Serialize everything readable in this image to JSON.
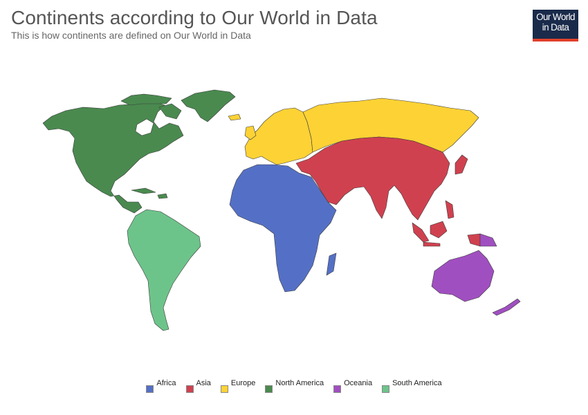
{
  "header": {
    "title": "Continents according to Our World in Data",
    "subtitle": "This is how continents are defined on Our World in Data"
  },
  "logo": {
    "line1": "Our World",
    "line2": "in Data",
    "bg_color": "#1a2a4a",
    "accent_color": "#e0402b"
  },
  "map": {
    "type": "choropleth-categorical",
    "legend_position": "bottom"
  },
  "legend": {
    "items": [
      {
        "label": "Africa",
        "color": "#5470c6"
      },
      {
        "label": "Asia",
        "color": "#d0414f"
      },
      {
        "label": "Europe",
        "color": "#fdd235"
      },
      {
        "label": "North America",
        "color": "#4a8a4f"
      },
      {
        "label": "Oceania",
        "color": "#a04fc0"
      },
      {
        "label": "South America",
        "color": "#6dc48a"
      }
    ]
  }
}
